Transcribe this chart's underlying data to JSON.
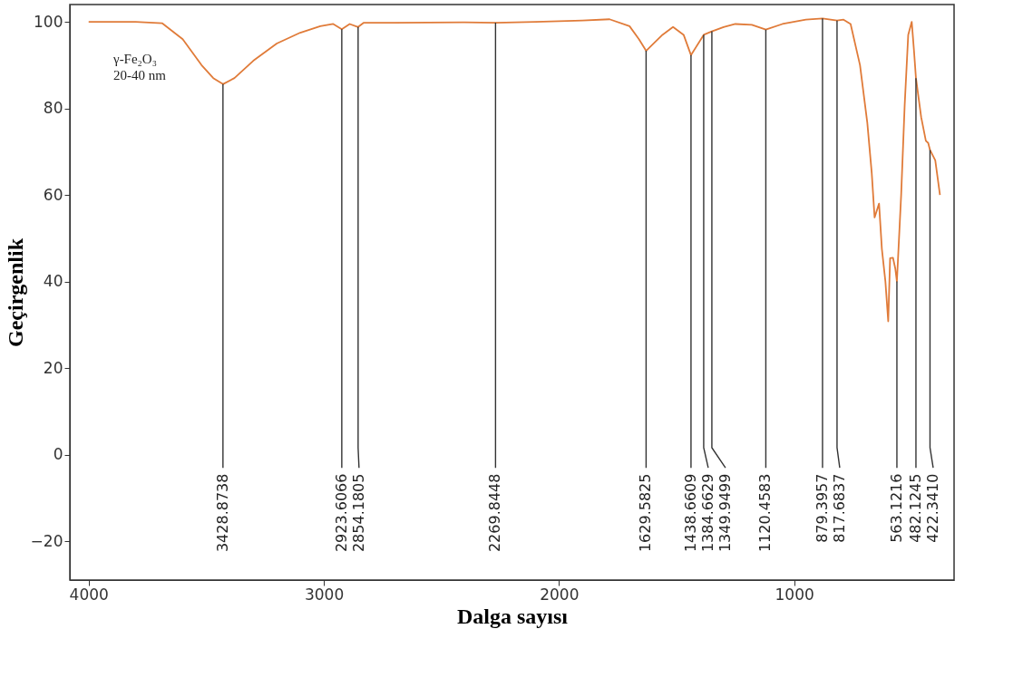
{
  "chart_data": {
    "type": "line",
    "xlabel": "Dalga sayısı",
    "ylabel": "Geçirgenlik",
    "xlim": [
      4080,
      320
    ],
    "ylim": [
      -29,
      104
    ],
    "xticks": [
      4000,
      3000,
      2000,
      1000
    ],
    "yticks": [
      -20,
      0,
      20,
      40,
      60,
      80,
      100
    ],
    "grid": false,
    "marker": "none",
    "line_style": "solid",
    "series": [
      {
        "color": "#e07b39",
        "x": [
          4000,
          3800,
          3688,
          3600,
          3520,
          3470,
          3428.8738,
          3380,
          3300,
          3200,
          3100,
          3015,
          2960,
          2923.6066,
          2890,
          2854.1805,
          2830,
          2700,
          2400,
          2269.8448,
          2100,
          1900,
          1785,
          1700,
          1660,
          1629.5825,
          1560,
          1515,
          1470,
          1438.6609,
          1384.6629,
          1349.9499,
          1300,
          1250,
          1180,
          1120.4583,
          1050,
          950,
          879.3957,
          817.6837,
          790,
          760,
          720,
          689,
          670,
          658,
          639,
          627,
          612,
          600,
          592,
          580,
          570,
          563.1216,
          545,
          530,
          515,
          500,
          490,
          482.1245,
          460,
          440,
          430,
          422.341,
          400,
          380
        ],
        "values": [
          100,
          100,
          99.7,
          96,
          90,
          87,
          85.6,
          87,
          91,
          95,
          97.5,
          99,
          99.5,
          98.3,
          99.5,
          98.8,
          99.8,
          99.8,
          99.9,
          99.8,
          100,
          100.3,
          100.6,
          99,
          96,
          93.3,
          97,
          98.8,
          97,
          92.3,
          97,
          97.8,
          98.8,
          99.5,
          99.3,
          98.2,
          99.5,
          100.5,
          100.8,
          100.3,
          100.5,
          99.5,
          90,
          76.7,
          65,
          54.8,
          58,
          47.5,
          40,
          30.8,
          45.4,
          45.5,
          43,
          40,
          60,
          80.8,
          97,
          100,
          93,
          87,
          78,
          72.5,
          72,
          70.4,
          68,
          60
        ]
      }
    ],
    "annotations": [
      "γ-Fe₂O₃",
      "20-40 nm",
      {
        "text": "3428.8738",
        "x": 3428.8738,
        "y": 85.6
      },
      {
        "text": "2923.6066",
        "x": 2923.6066,
        "y": 98.3
      },
      {
        "text": "2854.1805",
        "x": 2854.1805,
        "y": 98.8
      },
      {
        "text": "2269.8448",
        "x": 2269.8448,
        "y": 99.8
      },
      {
        "text": "1629.5825",
        "x": 1629.5825,
        "y": 93.3
      },
      {
        "text": "1438.6609",
        "x": 1438.6609,
        "y": 92.3
      },
      {
        "text": "1384.6629",
        "x": 1384.6629,
        "y": 97
      },
      {
        "text": "1349.9499",
        "x": 1349.9499,
        "y": 97.8
      },
      {
        "text": "1120.4583",
        "x": 1120.4583,
        "y": 98.2
      },
      {
        "text": "879.3957",
        "x": 879.3957,
        "y": 100.8
      },
      {
        "text": "817.6837",
        "x": 817.6837,
        "y": 100.3
      },
      {
        "text": "563.1216",
        "x": 563.1216,
        "y": 40
      },
      {
        "text": "482.1245",
        "x": 482.1245,
        "y": 87
      },
      {
        "text": "422.3410",
        "x": 422.341,
        "y": 70.4
      }
    ]
  }
}
